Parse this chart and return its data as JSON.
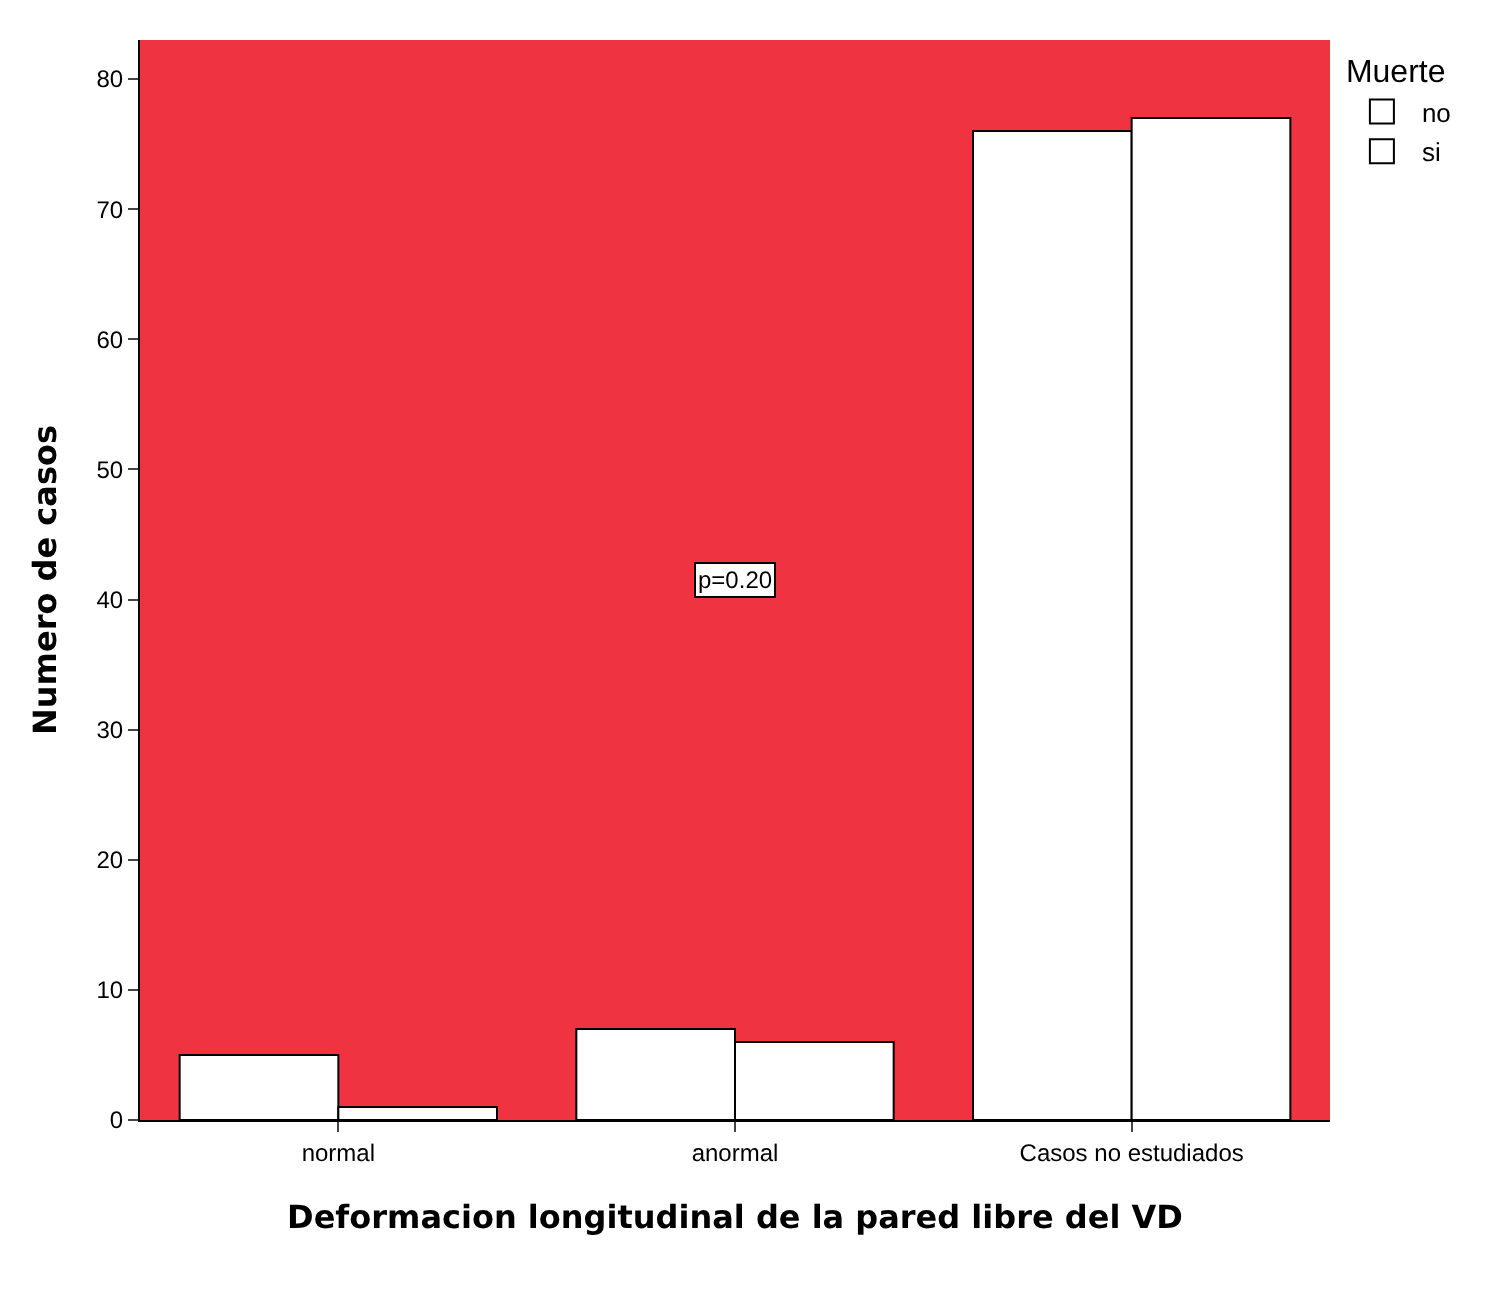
{
  "chart_data": {
    "type": "bar",
    "xlabel": "Deformacion longitudinal de la pared libre del VD",
    "ylabel": "Numero de casos",
    "legend_title": "Muerte",
    "categories": [
      "normal",
      "anormal",
      "Casos no estudiados"
    ],
    "series": [
      {
        "name": "no",
        "color": "#ffffff",
        "values": [
          5,
          7,
          76
        ]
      },
      {
        "name": "si",
        "color": "#ffffff",
        "values": [
          1,
          6,
          77
        ]
      }
    ],
    "ylim": [
      0,
      83
    ],
    "yticks": [
      0,
      10,
      20,
      30,
      40,
      50,
      60,
      70,
      80
    ],
    "grid": false,
    "legend": "top right",
    "annotations": [
      {
        "text": "p=0.20",
        "x": "anormal",
        "y": 41.5
      }
    ]
  }
}
